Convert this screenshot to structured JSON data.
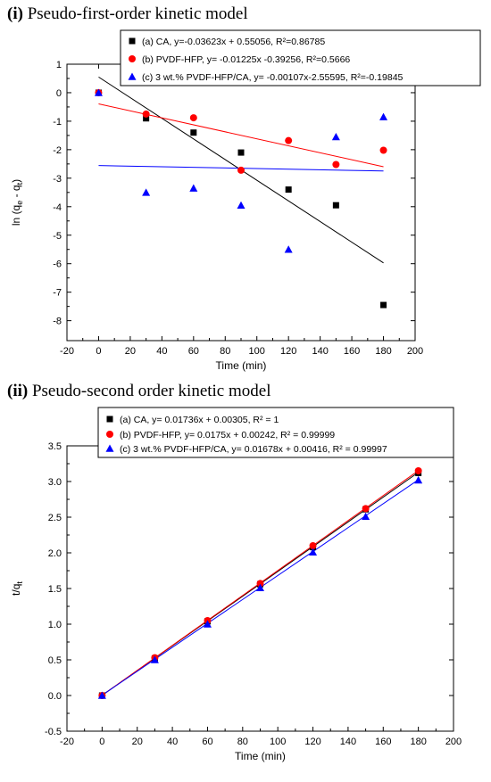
{
  "chart_data": [
    {
      "type": "scatter",
      "panel_id": "(i)",
      "title": "Pseudo-first-order kinetic model",
      "xlabel": "Time (min)",
      "ylabel_parts": [
        "ln (q",
        "e",
        " - q",
        "t",
        ")"
      ],
      "xlim": [
        -20,
        200
      ],
      "ylim": [
        -8.7,
        1
      ],
      "xticks": [
        -20,
        0,
        20,
        40,
        60,
        80,
        100,
        120,
        140,
        160,
        180,
        200
      ],
      "yticks": [
        1,
        0,
        -1,
        -2,
        -3,
        -4,
        -5,
        -6,
        -7,
        -8
      ],
      "legend_position": "top-right",
      "series": [
        {
          "legend_label": "(a) CA, y=-0.03623x + 0.55056, R²=0.86785",
          "marker": "square",
          "color": "#000000",
          "x": [
            0,
            30,
            60,
            90,
            120,
            150,
            180
          ],
          "y": [
            0,
            -0.9,
            -1.4,
            -2.1,
            -3.4,
            -3.95,
            -7.45
          ],
          "fit": {
            "slope": -0.03623,
            "intercept": 0.55056,
            "x_range": [
              0,
              180
            ]
          }
        },
        {
          "legend_label": "(b) PVDF-HFP, y= -0.01225x -0.39256, R²=0.5666",
          "marker": "circle",
          "color": "#ff0000",
          "x": [
            0,
            30,
            60,
            90,
            120,
            150,
            180
          ],
          "y": [
            0,
            -0.75,
            -0.88,
            -2.72,
            -1.68,
            -2.52,
            -2.02
          ],
          "fit": {
            "slope": -0.01225,
            "intercept": -0.39256,
            "x_range": [
              0,
              180
            ]
          }
        },
        {
          "legend_label": "(c) 3 wt.% PVDF-HFP/CA, y= -0.00107x-2.55595, R²=-0.19845",
          "marker": "triangle",
          "color": "#0000ff",
          "x": [
            0,
            30,
            60,
            90,
            120,
            150,
            180
          ],
          "y": [
            0,
            -3.5,
            -3.35,
            -3.95,
            -5.5,
            -1.55,
            -0.85
          ],
          "fit": {
            "slope": -0.00107,
            "intercept": -2.55595,
            "x_range": [
              0,
              180
            ]
          }
        }
      ]
    },
    {
      "type": "scatter",
      "panel_id": "(ii)",
      "title": "Pseudo-second order kinetic model",
      "xlabel": "Time (min)",
      "ylabel_parts": [
        "t/q",
        "t",
        "",
        "",
        ""
      ],
      "xlim": [
        -20,
        200
      ],
      "ylim": [
        -0.5,
        3.5
      ],
      "xticks": [
        -20,
        0,
        20,
        40,
        60,
        80,
        100,
        120,
        140,
        160,
        180,
        200
      ],
      "yticks": [
        3.5,
        3.0,
        2.5,
        2.0,
        1.5,
        1.0,
        0.5,
        0.0,
        -0.5
      ],
      "yticks_labels": [
        "3.5",
        "3.0",
        "2.5",
        "2.0",
        "1.5",
        "1.0",
        "0.5",
        "0.0",
        "-0.5"
      ],
      "legend_position": "top-left",
      "series": [
        {
          "legend_label": "(a) CA, y= 0.01736x + 0.00305, R² = 1",
          "marker": "square",
          "color": "#000000",
          "x": [
            0,
            30,
            60,
            90,
            120,
            150,
            180
          ],
          "y": [
            0,
            0.52,
            1.04,
            1.56,
            2.08,
            2.61,
            3.12
          ],
          "fit": {
            "slope": 0.01736,
            "intercept": 0.00305,
            "x_range": [
              0,
              180
            ]
          }
        },
        {
          "legend_label": "(b) PVDF-HFP, y= 0.0175x + 0.00242, R² = 0.99999",
          "marker": "circle",
          "color": "#ff0000",
          "x": [
            0,
            30,
            60,
            90,
            120,
            150,
            180
          ],
          "y": [
            0,
            0.53,
            1.05,
            1.57,
            2.1,
            2.62,
            3.15
          ],
          "fit": {
            "slope": 0.0175,
            "intercept": 0.00242,
            "x_range": [
              0,
              180
            ]
          }
        },
        {
          "legend_label": "(c) 3 wt.% PVDF-HFP/CA, y= 0.01678x + 0.00416, R² = 0.99997",
          "marker": "triangle",
          "color": "#0000ff",
          "x": [
            0,
            30,
            60,
            90,
            120,
            150,
            180
          ],
          "y": [
            0,
            0.5,
            1.0,
            1.51,
            2.01,
            2.51,
            3.02
          ],
          "fit": {
            "slope": 0.01678,
            "intercept": 0.00416,
            "x_range": [
              0,
              180
            ]
          }
        }
      ]
    }
  ]
}
